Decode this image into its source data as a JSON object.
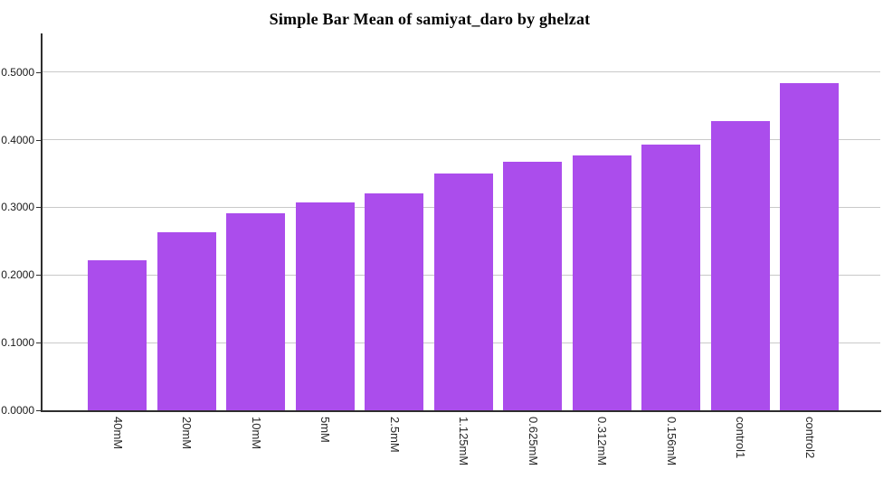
{
  "chart": {
    "title": "Simple Bar Mean of samiyat_daro by ghelzat"
  },
  "chart_data": {
    "type": "bar",
    "title": "Simple Bar Mean of samiyat_daro by ghelzat",
    "categories": [
      "40mM",
      "20mM",
      "10mM",
      "5mM",
      "2.5mM",
      "1.125mM",
      "0.625mM",
      "0.312mM",
      "0.156mM",
      "control1",
      "control2"
    ],
    "values": [
      0.222,
      0.263,
      0.291,
      0.307,
      0.32,
      0.35,
      0.367,
      0.377,
      0.393,
      0.428,
      0.483
    ],
    "xlabel": "",
    "ylabel": "",
    "ylim": [
      0,
      0.557
    ],
    "y_ticks": {
      "values": [
        0,
        0.1,
        0.2,
        0.3,
        0.4,
        0.5
      ],
      "labels": [
        "0.0000",
        "0.1000",
        "0.2000",
        "0.3000",
        "0.4000",
        "0.5000"
      ]
    },
    "grid": "horizontal",
    "legend": "none",
    "x_tick_rotation_deg": 90,
    "colors": {
      "bar": "#AB4DEC",
      "gridline": "#C9C9C9",
      "axis": "#2E2E2E",
      "label": "#1A1A1A"
    }
  }
}
